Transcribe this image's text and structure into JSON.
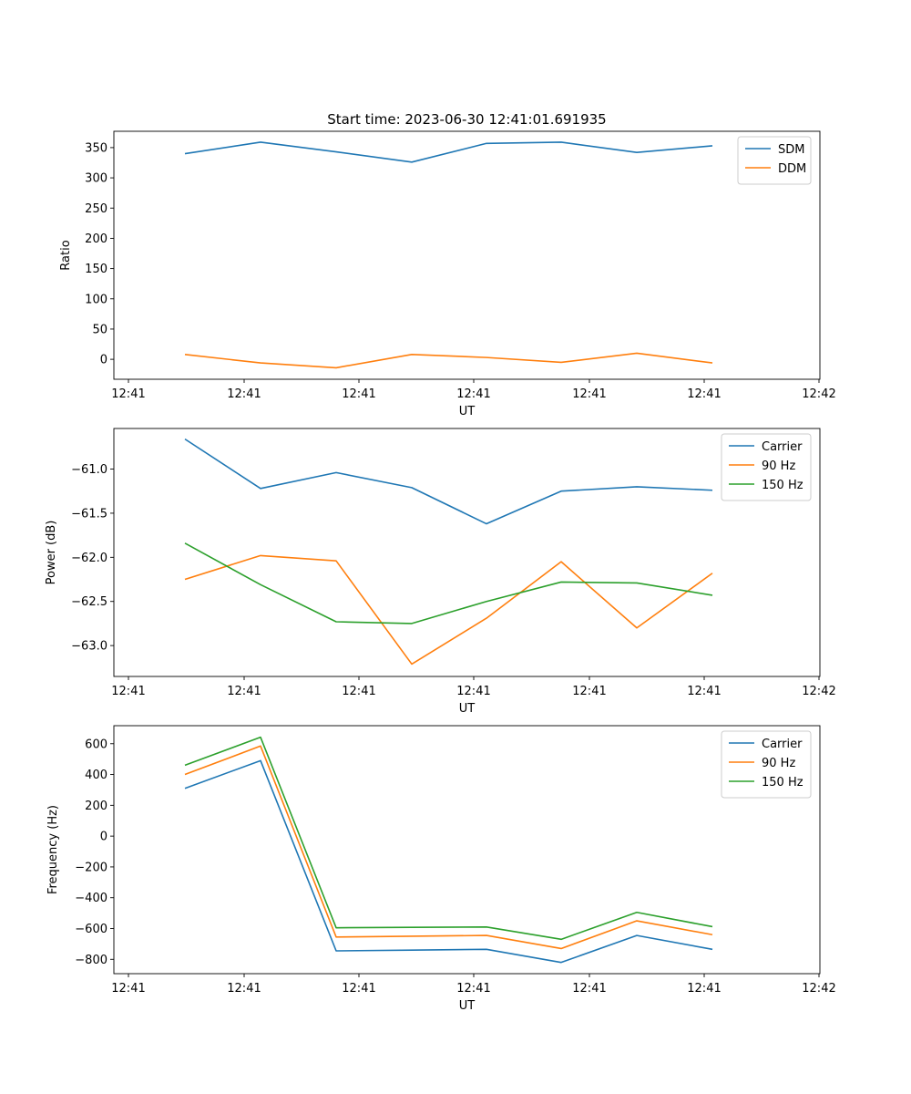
{
  "figure": {
    "title": "Start time: 2023-06-30 12:41:01.691935"
  },
  "chart_data": [
    {
      "type": "line",
      "title": "Start time: 2023-06-30 12:41:01.691935",
      "xlabel": "UT",
      "ylabel": "Ratio",
      "x_tick_labels": [
        "12:41",
        "12:41",
        "12:41",
        "12:41",
        "12:41",
        "12:41",
        "12:42"
      ],
      "y_ticks": [
        0,
        50,
        100,
        150,
        200,
        250,
        300,
        350
      ],
      "ylim": [
        -33,
        377
      ],
      "legend_position": "top-right",
      "grid": false,
      "series": [
        {
          "name": "SDM",
          "color": "#1f77b4",
          "values": [
            340,
            359,
            343,
            326,
            357,
            359,
            342,
            353
          ]
        },
        {
          "name": "DDM",
          "color": "#ff7f0e",
          "values": [
            8,
            -6,
            -14,
            8,
            3,
            -5,
            10,
            -6
          ]
        }
      ]
    },
    {
      "type": "line",
      "title": "",
      "xlabel": "UT",
      "ylabel": "Power (dB)",
      "x_tick_labels": [
        "12:41",
        "12:41",
        "12:41",
        "12:41",
        "12:41",
        "12:41",
        "12:42"
      ],
      "y_ticks": [
        -61.0,
        -61.5,
        -62.0,
        -62.5,
        -63.0
      ],
      "y_tick_labels": [
        "−61.0",
        "−61.5",
        "−62.0",
        "−62.5",
        "−63.0"
      ],
      "ylim": [
        -63.35,
        -60.54
      ],
      "legend_position": "top-right",
      "grid": false,
      "series": [
        {
          "name": "Carrier",
          "color": "#1f77b4",
          "values": [
            -60.66,
            -61.22,
            -61.04,
            -61.21,
            -61.62,
            -61.25,
            -61.2,
            -61.24
          ]
        },
        {
          "name": "90 Hz",
          "color": "#ff7f0e",
          "values": [
            -62.25,
            -61.98,
            -62.04,
            -63.21,
            -62.69,
            -62.05,
            -62.8,
            -62.18
          ]
        },
        {
          "name": "150 Hz",
          "color": "#2ca02c",
          "values": [
            -61.84,
            -62.31,
            -62.73,
            -62.75,
            -62.5,
            -62.28,
            -62.29,
            -62.43
          ]
        }
      ]
    },
    {
      "type": "line",
      "title": "",
      "xlabel": "UT",
      "ylabel": "Frequency (Hz)",
      "x_tick_labels": [
        "12:41",
        "12:41",
        "12:41",
        "12:41",
        "12:41",
        "12:41",
        "12:42"
      ],
      "y_ticks": [
        600,
        400,
        200,
        0,
        -200,
        -400,
        -600,
        -800
      ],
      "y_tick_labels": [
        "600",
        "400",
        "200",
        "0",
        "−200",
        "−400",
        "−600",
        "−800"
      ],
      "ylim": [
        -893,
        717
      ],
      "legend_position": "top-right",
      "grid": false,
      "series": [
        {
          "name": "Carrier",
          "color": "#1f77b4",
          "values": [
            310,
            490,
            -745,
            -740,
            -735,
            -820,
            -645,
            -735
          ]
        },
        {
          "name": "90 Hz",
          "color": "#ff7f0e",
          "values": [
            400,
            585,
            -655,
            -650,
            -645,
            -730,
            -550,
            -640
          ]
        },
        {
          "name": "150 Hz",
          "color": "#2ca02c",
          "values": [
            460,
            642,
            -595,
            -592,
            -590,
            -670,
            -495,
            -588
          ]
        }
      ]
    }
  ]
}
